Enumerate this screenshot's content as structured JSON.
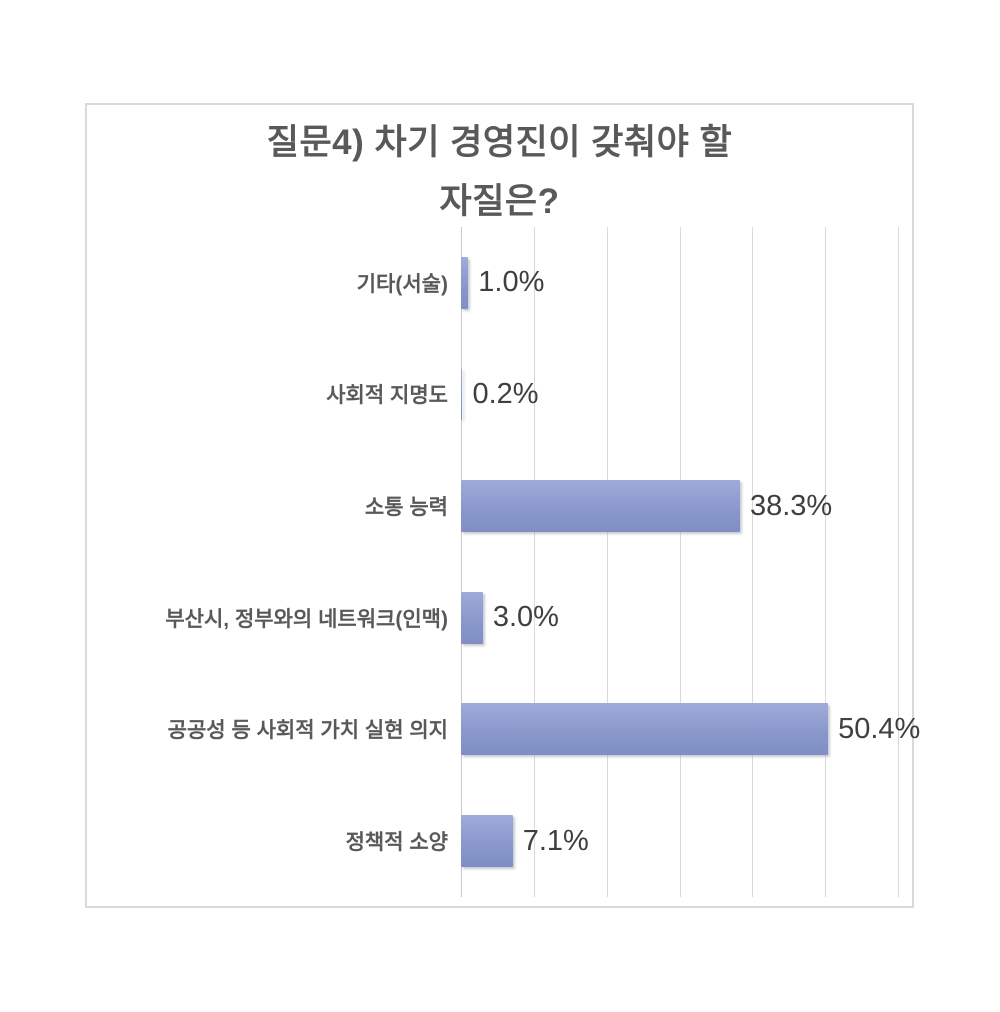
{
  "chart_data": {
    "type": "bar",
    "orientation": "horizontal",
    "title": "질문4) 차기 경영진이 갖춰야 할 자질은?",
    "title_lines": [
      "질문4) 차기 경영진이 갖춰야 할",
      "자질은?"
    ],
    "categories": [
      "기타(서술)",
      "사회적 지명도",
      "소통 능력",
      "부산시, 정부와의 네트워크(인맥)",
      "공공성 등 사회적 가치 실현 의지",
      "정책적 소양"
    ],
    "values": [
      1.0,
      0.2,
      38.3,
      3.0,
      50.4,
      7.1
    ],
    "value_labels": [
      "1.0%",
      "0.2%",
      "38.3%",
      "3.0%",
      "50.4%",
      "7.1%"
    ],
    "xlabel": "",
    "ylabel": "",
    "xlim": [
      0,
      60
    ],
    "gridline_interval": 10,
    "grid": true,
    "legend": false,
    "x_tick_labels_visible": false,
    "colors": {
      "background": "#ffffff",
      "frame_border": "#d9d9d9",
      "gridline": "#d9d9d9",
      "axis_line": "#c9c9c9",
      "bar_gradient_top": "#9fabd9",
      "bar_gradient_mid": "#8a98cc",
      "bar_gradient_bottom": "#7f8fc3",
      "title_text": "#595959",
      "category_text": "#595959",
      "value_text": "#3f3f3f"
    }
  }
}
